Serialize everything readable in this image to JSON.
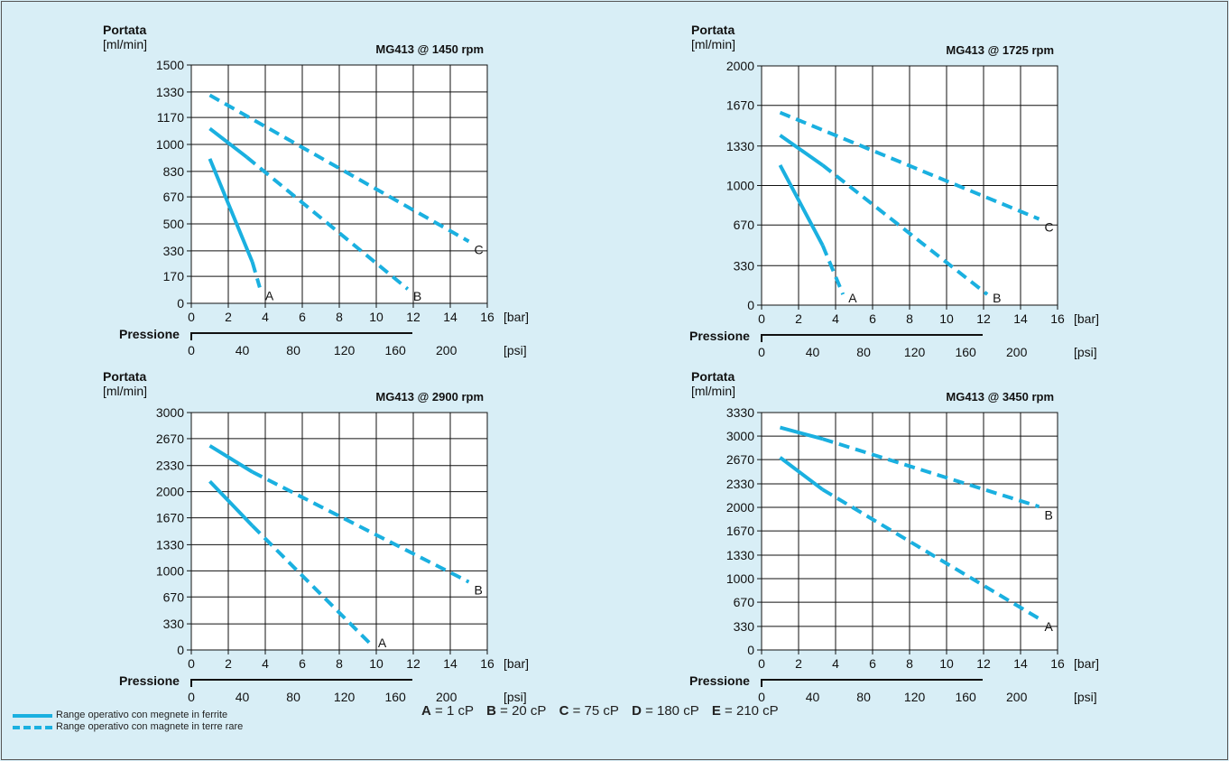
{
  "page": {
    "background_color": "#d8eef6",
    "plot_background_color": "#ffffff",
    "line_color": "#1ab0e0",
    "pressure_label": "Pressione",
    "bar_unit": "[bar]",
    "psi_unit": "[psi]",
    "flow_label": "Portata",
    "flow_unit": "[ml/min]"
  },
  "chart_data": [
    {
      "type": "line",
      "title": "MG413 @ 1450 rpm",
      "ylabel": "Portata",
      "yunit": "[ml/min]",
      "xlabel": "Pressione",
      "xunit": "[bar]",
      "xlim": [
        0,
        16
      ],
      "ylim": [
        0,
        1500
      ],
      "x_ticks": [
        0,
        2,
        4,
        6,
        8,
        10,
        12,
        14,
        16
      ],
      "y_ticks": [
        0,
        170,
        330,
        500,
        670,
        830,
        1000,
        1170,
        1330,
        1500
      ],
      "psi_ticks": [
        0,
        40,
        80,
        120,
        160,
        200
      ],
      "grid": true,
      "series": [
        {
          "name": "A",
          "ferrite": [
            [
              1,
              910
            ],
            [
              3.3,
              260
            ]
          ],
          "rare_earth": [
            [
              3.3,
              260
            ],
            [
              3.7,
              100
            ]
          ]
        },
        {
          "name": "B",
          "ferrite": [
            [
              1,
              1100
            ],
            [
              3,
              920
            ]
          ],
          "rare_earth": [
            [
              3,
              920
            ],
            [
              11.7,
              90
            ]
          ]
        },
        {
          "name": "C",
          "ferrite": [],
          "rare_earth": [
            [
              1,
              1310
            ],
            [
              15,
              390
            ]
          ]
        }
      ]
    },
    {
      "type": "line",
      "title": "MG413 @ 1725 rpm",
      "ylabel": "Portata",
      "yunit": "[ml/min]",
      "xlabel": "Pressione",
      "xunit": "[bar]",
      "xlim": [
        0,
        16
      ],
      "ylim": [
        0,
        2000
      ],
      "x_ticks": [
        0,
        2,
        4,
        6,
        8,
        10,
        12,
        14,
        16
      ],
      "y_ticks": [
        0,
        330,
        670,
        1000,
        1330,
        1670,
        2000
      ],
      "psi_ticks": [
        0,
        40,
        80,
        120,
        160,
        200
      ],
      "grid": true,
      "series": [
        {
          "name": "A",
          "ferrite": [
            [
              1,
              1170
            ],
            [
              3.3,
              500
            ]
          ],
          "rare_earth": [
            [
              3.3,
              500
            ],
            [
              4.4,
              90
            ]
          ]
        },
        {
          "name": "B",
          "ferrite": [
            [
              1,
              1420
            ],
            [
              3.3,
              1170
            ]
          ],
          "rare_earth": [
            [
              3.3,
              1170
            ],
            [
              12.2,
              90
            ]
          ]
        },
        {
          "name": "C",
          "ferrite": [],
          "rare_earth": [
            [
              1,
              1610
            ],
            [
              15,
              720
            ]
          ]
        }
      ]
    },
    {
      "type": "line",
      "title": "MG413 @ 2900 rpm",
      "ylabel": "Portata",
      "yunit": "[ml/min]",
      "xlabel": "Pressione",
      "xunit": "[bar]",
      "xlim": [
        0,
        16
      ],
      "ylim": [
        0,
        3000
      ],
      "x_ticks": [
        0,
        2,
        4,
        6,
        8,
        10,
        12,
        14,
        16
      ],
      "y_ticks": [
        0,
        330,
        670,
        1000,
        1330,
        1670,
        2000,
        2330,
        2670,
        3000
      ],
      "psi_ticks": [
        0,
        40,
        80,
        120,
        160,
        200
      ],
      "grid": true,
      "series": [
        {
          "name": "A",
          "ferrite": [
            [
              1,
              2130
            ],
            [
              3.3,
              1570
            ]
          ],
          "rare_earth": [
            [
              3.3,
              1570
            ],
            [
              9.8,
              50
            ]
          ]
        },
        {
          "name": "B",
          "ferrite": [
            [
              1,
              2580
            ],
            [
              3.3,
              2250
            ]
          ],
          "rare_earth": [
            [
              3.3,
              2250
            ],
            [
              15,
              860
            ]
          ]
        }
      ]
    },
    {
      "type": "line",
      "title": "MG413 @ 3450 rpm",
      "ylabel": "Portata",
      "yunit": "[ml/min]",
      "xlabel": "Pressione",
      "xunit": "[bar]",
      "xlim": [
        0,
        16
      ],
      "ylim": [
        0,
        3330
      ],
      "x_ticks": [
        0,
        2,
        4,
        6,
        8,
        10,
        12,
        14,
        16
      ],
      "y_ticks": [
        0,
        330,
        670,
        1000,
        1330,
        1670,
        2000,
        2330,
        2670,
        3000,
        3330
      ],
      "psi_ticks": [
        0,
        40,
        80,
        120,
        160,
        200
      ],
      "grid": true,
      "series": [
        {
          "name": "A",
          "ferrite": [
            [
              1,
              2700
            ],
            [
              3.3,
              2250
            ]
          ],
          "rare_earth": [
            [
              3.3,
              2250
            ],
            [
              15,
              440
            ]
          ]
        },
        {
          "name": "B",
          "ferrite": [
            [
              1,
              3120
            ],
            [
              3.3,
              2960
            ]
          ],
          "rare_earth": [
            [
              3.3,
              2960
            ],
            [
              15,
              2010
            ]
          ]
        }
      ]
    }
  ],
  "legend": {
    "ferrite_label": "Range operativo con megnete in ferrite",
    "rare_earth_label": "Range operativo con magnete in terre rare"
  },
  "viscosity": [
    {
      "letter": "A",
      "value": " = 1 cP"
    },
    {
      "letter": "B",
      "value": " = 20 cP"
    },
    {
      "letter": "C",
      "value": " = 75 cP"
    },
    {
      "letter": "D",
      "value": " = 180 cP"
    },
    {
      "letter": "E",
      "value": " = 210 cP"
    }
  ]
}
